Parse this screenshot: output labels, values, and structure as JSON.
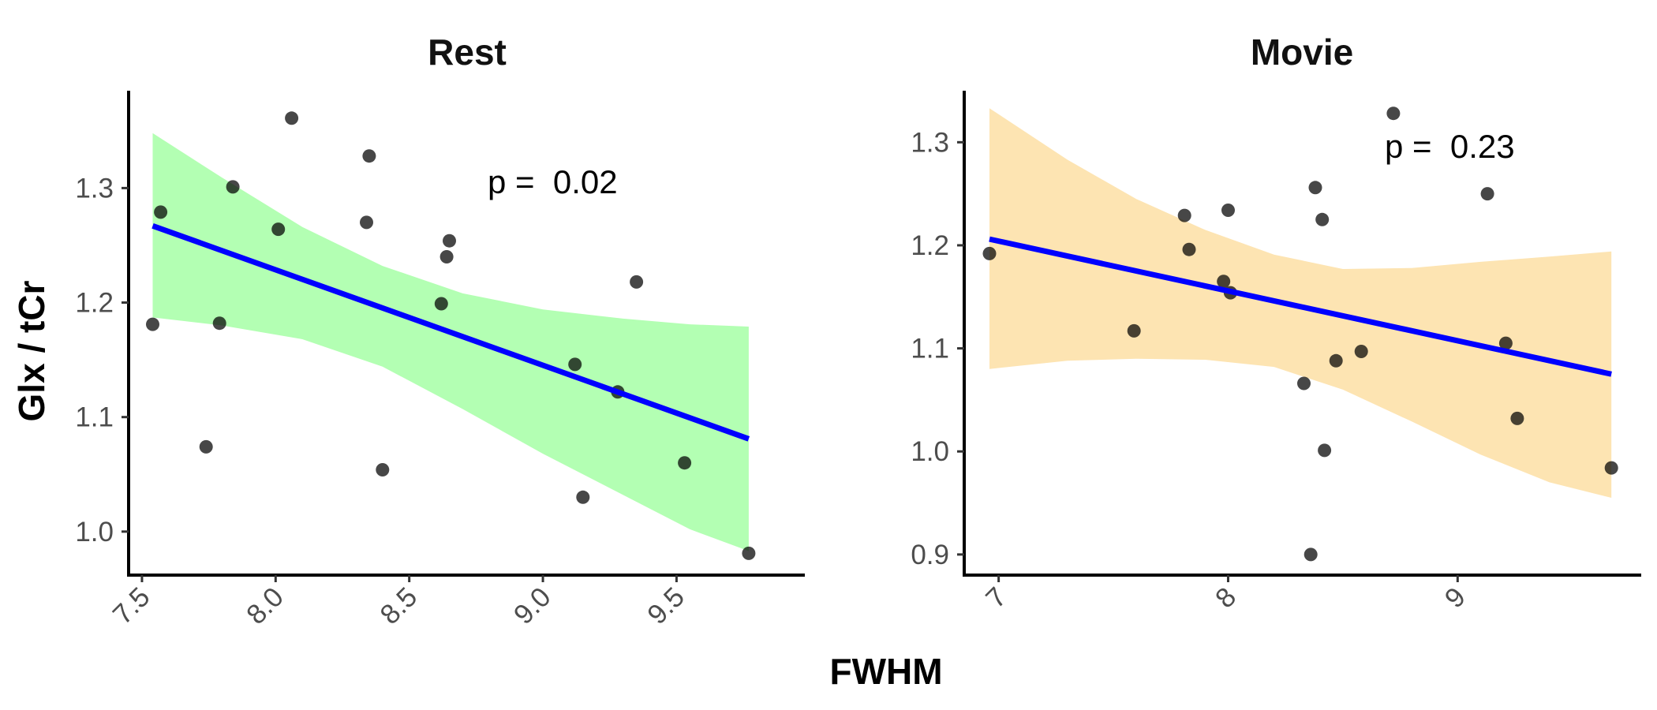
{
  "figure": {
    "ylabel": "Glx / tCr",
    "xlabel": "FWHM"
  },
  "chart_data": [
    {
      "type": "scatter",
      "title": "Rest",
      "annotation": "p =  0.02",
      "xlim": [
        7.45,
        9.98
      ],
      "ylim": [
        0.962,
        1.385
      ],
      "xticks": [
        7.5,
        8.0,
        8.5,
        9.0,
        9.5
      ],
      "xtick_labels": [
        "7.5",
        "8.0",
        "8.5",
        "9.0",
        "9.5"
      ],
      "yticks": [
        1.0,
        1.1,
        1.2,
        1.3
      ],
      "ytick_labels": [
        "1.0",
        "1.1",
        "1.2",
        "1.3"
      ],
      "band_color": "#b3ffb3",
      "line_color": "#0000ff",
      "point_color": "#000000",
      "points": [
        {
          "x": 7.54,
          "y": 1.181
        },
        {
          "x": 7.57,
          "y": 1.279
        },
        {
          "x": 7.74,
          "y": 1.074
        },
        {
          "x": 7.79,
          "y": 1.182
        },
        {
          "x": 7.84,
          "y": 1.301
        },
        {
          "x": 8.01,
          "y": 1.264
        },
        {
          "x": 8.06,
          "y": 1.361
        },
        {
          "x": 8.34,
          "y": 1.27
        },
        {
          "x": 8.35,
          "y": 1.328
        },
        {
          "x": 8.4,
          "y": 1.054
        },
        {
          "x": 8.64,
          "y": 1.24
        },
        {
          "x": 8.65,
          "y": 1.254
        },
        {
          "x": 8.62,
          "y": 1.199
        },
        {
          "x": 9.12,
          "y": 1.146
        },
        {
          "x": 9.15,
          "y": 1.03
        },
        {
          "x": 9.28,
          "y": 1.122
        },
        {
          "x": 9.35,
          "y": 1.218
        },
        {
          "x": 9.53,
          "y": 1.06
        },
        {
          "x": 9.77,
          "y": 0.981
        }
      ],
      "fit": {
        "x": [
          7.54,
          9.77
        ],
        "y": [
          1.267,
          1.081
        ]
      },
      "band": {
        "x": [
          7.54,
          7.8,
          8.1,
          8.4,
          8.7,
          9.0,
          9.3,
          9.55,
          9.77
        ],
        "upper": [
          1.348,
          1.309,
          1.266,
          1.232,
          1.208,
          1.194,
          1.186,
          1.181,
          1.179
        ],
        "lower": [
          1.187,
          1.18,
          1.168,
          1.144,
          1.107,
          1.068,
          1.032,
          1.002,
          0.983
        ]
      }
    },
    {
      "type": "scatter",
      "title": "Movie",
      "annotation": "p =  0.23",
      "xlim": [
        6.85,
        9.8
      ],
      "ylim": [
        0.88,
        1.35
      ],
      "xticks": [
        7,
        8,
        9
      ],
      "xtick_labels": [
        "7",
        "8",
        "9"
      ],
      "yticks": [
        0.9,
        1.0,
        1.1,
        1.2,
        1.3
      ],
      "ytick_labels": [
        "0.9",
        "1.0",
        "1.1",
        "1.2",
        "1.3"
      ],
      "band_color": "#fde4b2",
      "line_color": "#0000ff",
      "point_color": "#000000",
      "points": [
        {
          "x": 6.96,
          "y": 1.192
        },
        {
          "x": 7.59,
          "y": 1.117
        },
        {
          "x": 7.81,
          "y": 1.229
        },
        {
          "x": 7.83,
          "y": 1.196
        },
        {
          "x": 7.98,
          "y": 1.165
        },
        {
          "x": 8.0,
          "y": 1.234
        },
        {
          "x": 8.01,
          "y": 1.154
        },
        {
          "x": 8.33,
          "y": 1.066
        },
        {
          "x": 8.36,
          "y": 0.9
        },
        {
          "x": 8.38,
          "y": 1.256
        },
        {
          "x": 8.41,
          "y": 1.225
        },
        {
          "x": 8.42,
          "y": 1.001
        },
        {
          "x": 8.47,
          "y": 1.088
        },
        {
          "x": 8.58,
          "y": 1.097
        },
        {
          "x": 8.72,
          "y": 1.328
        },
        {
          "x": 9.13,
          "y": 1.25
        },
        {
          "x": 9.21,
          "y": 1.105
        },
        {
          "x": 9.26,
          "y": 1.032
        },
        {
          "x": 9.67,
          "y": 0.984
        }
      ],
      "fit": {
        "x": [
          6.96,
          9.67
        ],
        "y": [
          1.206,
          1.075
        ]
      },
      "band": {
        "x": [
          6.96,
          7.3,
          7.6,
          7.9,
          8.2,
          8.5,
          8.8,
          9.1,
          9.4,
          9.67
        ],
        "upper": [
          1.333,
          1.283,
          1.245,
          1.215,
          1.191,
          1.177,
          1.178,
          1.184,
          1.189,
          1.194
        ],
        "lower": [
          1.08,
          1.088,
          1.09,
          1.089,
          1.082,
          1.06,
          1.029,
          0.997,
          0.97,
          0.955
        ]
      }
    }
  ]
}
